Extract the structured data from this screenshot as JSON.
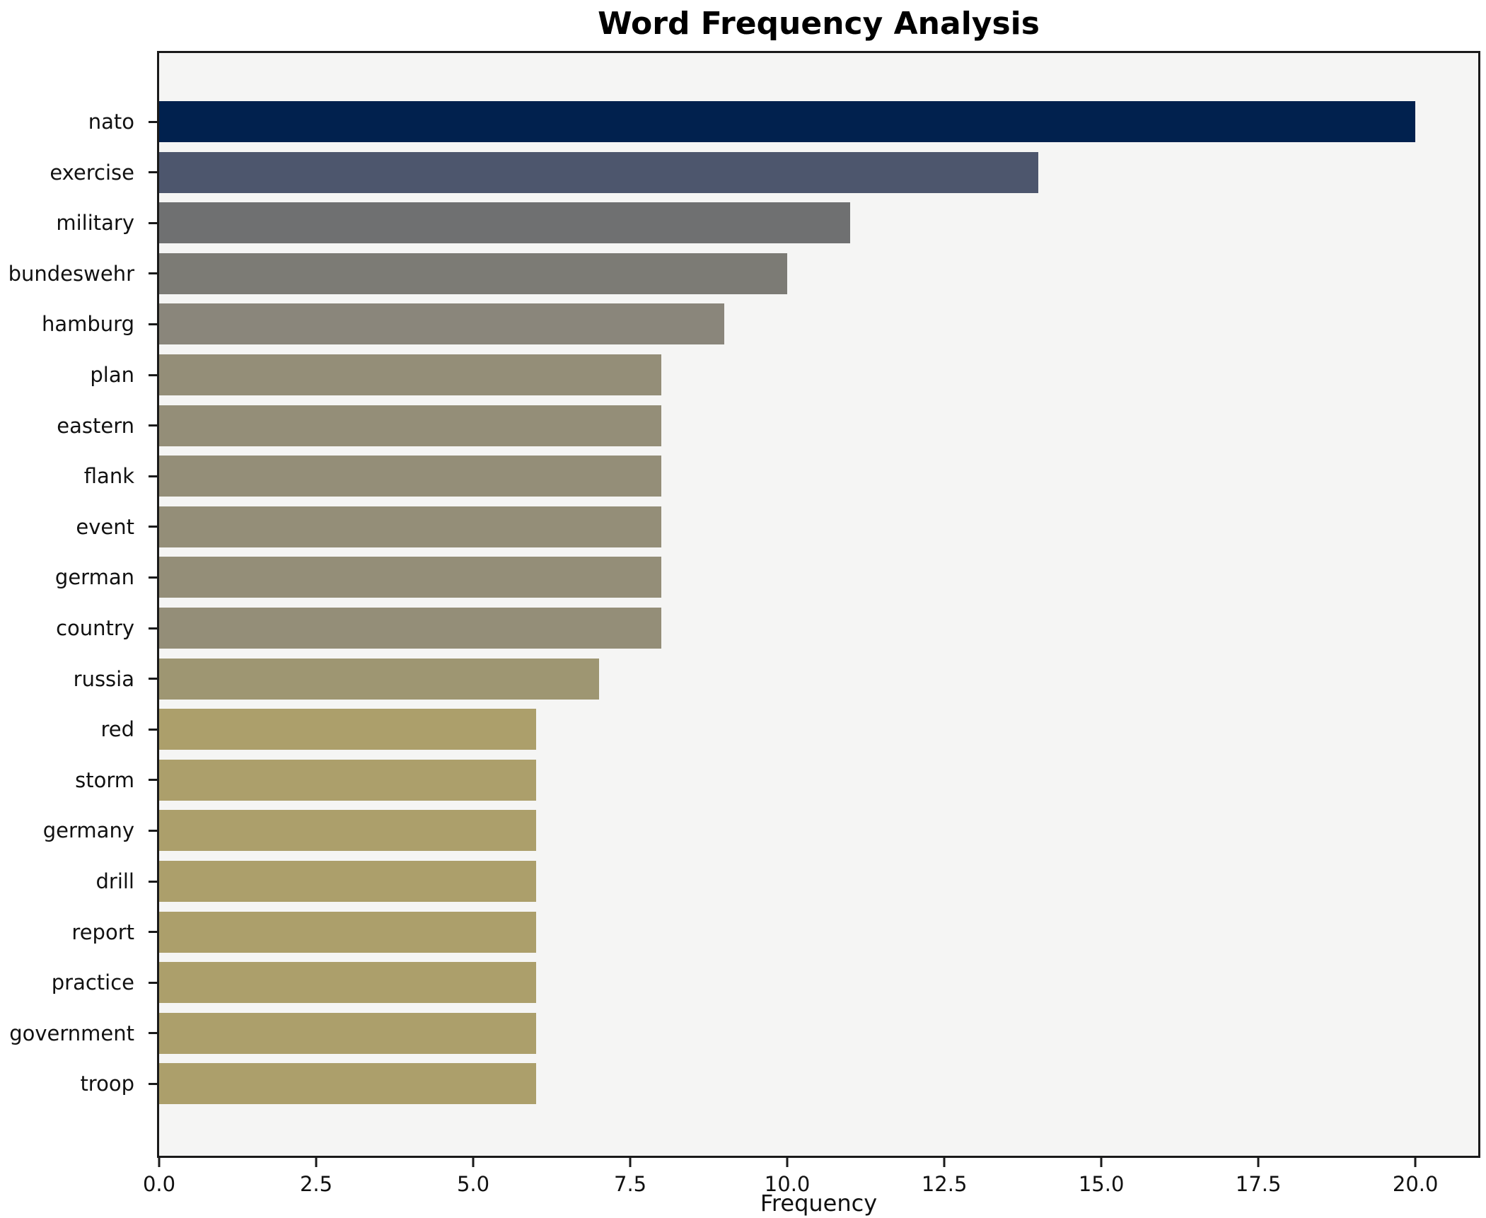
{
  "title": "Word Frequency Analysis",
  "chart_data": {
    "type": "bar",
    "orientation": "horizontal",
    "title": "Word Frequency Analysis",
    "xlabel": "Frequency",
    "ylabel": "",
    "categories": [
      "nato",
      "exercise",
      "military",
      "bundeswehr",
      "hamburg",
      "plan",
      "eastern",
      "flank",
      "event",
      "german",
      "country",
      "russia",
      "red",
      "storm",
      "germany",
      "drill",
      "report",
      "practice",
      "government",
      "troop"
    ],
    "values": [
      20,
      14,
      11,
      10,
      9,
      8,
      8,
      8,
      8,
      8,
      8,
      7,
      6,
      6,
      6,
      6,
      6,
      6,
      6,
      6
    ],
    "bar_colors": [
      "#01214e",
      "#4d566d",
      "#6f7071",
      "#7c7b75",
      "#8a867b",
      "#948e78",
      "#948e78",
      "#948e78",
      "#948e78",
      "#948e78",
      "#948e78",
      "#9e9672",
      "#ac9f6b",
      "#ac9f6b",
      "#ac9f6b",
      "#ac9f6b",
      "#ac9f6b",
      "#ac9f6b",
      "#ac9f6b",
      "#ac9f6b"
    ],
    "xticks": [
      0.0,
      2.5,
      5.0,
      7.5,
      10.0,
      12.5,
      15.0,
      17.5,
      20.0
    ],
    "xtick_labels": [
      "0.0",
      "2.5",
      "5.0",
      "7.5",
      "10.0",
      "12.5",
      "15.0",
      "17.5",
      "20.0"
    ],
    "xlim": [
      0,
      21
    ],
    "grid": false,
    "legend": null,
    "colors": {
      "plot_background": "#f5f5f4",
      "figure_background": "#ffffff",
      "spine": "#1a1a1a",
      "text": "#111111"
    }
  }
}
